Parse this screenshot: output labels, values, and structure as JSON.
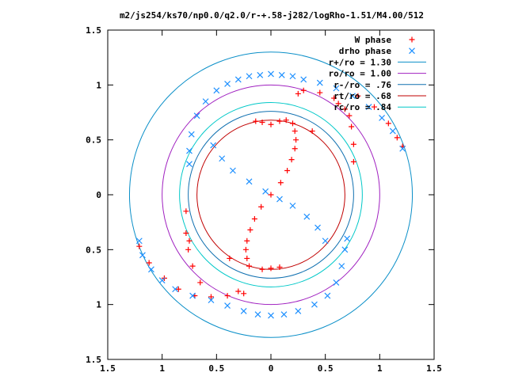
{
  "chart_data": {
    "type": "scatter",
    "title": "m2/js254/ks70/np0.0/q2.0/r-+.58-j282/logRho-1.51/M4.00/512",
    "xlabel": "",
    "ylabel": "",
    "xlim": [
      -1.5,
      1.5
    ],
    "ylim": [
      -1.5,
      1.5
    ],
    "grid": false,
    "legend_placement": "top-right",
    "x_ticks": [
      {
        "value": -1.5,
        "label": "1.5"
      },
      {
        "value": -1.0,
        "label": "1"
      },
      {
        "value": -0.5,
        "label": "0.5"
      },
      {
        "value": 0.0,
        "label": "0"
      },
      {
        "value": 0.5,
        "label": "0.5"
      },
      {
        "value": 1.0,
        "label": "1"
      },
      {
        "value": 1.5,
        "label": "1.5"
      }
    ],
    "y_ticks": [
      {
        "value": -1.5,
        "label": "1.5"
      },
      {
        "value": -1.0,
        "label": "1"
      },
      {
        "value": -0.5,
        "label": "0.5"
      },
      {
        "value": 0.0,
        "label": "0"
      },
      {
        "value": 0.5,
        "label": "0.5"
      },
      {
        "value": 1.0,
        "label": "1"
      },
      {
        "value": 1.5,
        "label": "1.5"
      }
    ],
    "circles": [
      {
        "name": "r+/ro = 1.30",
        "radius": 1.3,
        "color": "#0a8fc8"
      },
      {
        "name": "ro/ro = 1.00",
        "radius": 1.0,
        "color": "#a020c0"
      },
      {
        "name": "r-/ro = .76",
        "radius": 0.76,
        "color": "#1070b0"
      },
      {
        "name": "rt/ro = .68",
        "radius": 0.68,
        "color": "#c00000"
      },
      {
        "name": "rc/ro = .84",
        "radius": 0.84,
        "color": "#00c8c8"
      }
    ],
    "series": [
      {
        "name": "W phase",
        "marker": "plus",
        "color": "#ff0000",
        "points": [
          [
            0.2,
            0.65
          ],
          [
            0.22,
            0.58
          ],
          [
            0.23,
            0.5
          ],
          [
            0.22,
            0.42
          ],
          [
            0.19,
            0.32
          ],
          [
            0.15,
            0.22
          ],
          [
            0.09,
            0.11
          ],
          [
            0.0,
            0.0
          ],
          [
            -0.09,
            -0.11
          ],
          [
            -0.15,
            -0.22
          ],
          [
            -0.19,
            -0.32
          ],
          [
            -0.22,
            -0.42
          ],
          [
            -0.23,
            -0.5
          ],
          [
            -0.22,
            -0.58
          ],
          [
            -0.2,
            -0.65
          ],
          [
            0.14,
            0.68
          ],
          [
            0.08,
            0.67
          ],
          [
            0.0,
            0.64
          ],
          [
            -0.08,
            0.66
          ],
          [
            -0.14,
            0.67
          ],
          [
            -0.08,
            -0.68
          ],
          [
            0.0,
            -0.67
          ],
          [
            0.08,
            -0.66
          ],
          [
            0.38,
            0.58
          ],
          [
            -0.38,
            -0.58
          ],
          [
            0.3,
            0.95
          ],
          [
            0.45,
            0.93
          ],
          [
            0.58,
            0.88
          ],
          [
            0.68,
            0.78
          ],
          [
            0.74,
            0.62
          ],
          [
            0.76,
            0.46
          ],
          [
            0.76,
            0.3
          ],
          [
            0.8,
            0.9
          ],
          [
            0.95,
            0.8
          ],
          [
            1.08,
            0.65
          ],
          [
            1.16,
            0.52
          ],
          [
            1.21,
            0.44
          ],
          [
            -1.21,
            -0.47
          ],
          [
            -1.12,
            -0.62
          ],
          [
            -0.98,
            -0.76
          ],
          [
            -0.85,
            -0.86
          ],
          [
            -0.7,
            -0.92
          ],
          [
            -0.55,
            -0.93
          ],
          [
            -0.4,
            -0.92
          ],
          [
            -0.3,
            -0.88
          ],
          [
            -0.65,
            -0.8
          ],
          [
            -0.72,
            -0.65
          ],
          [
            -0.76,
            -0.5
          ],
          [
            -0.78,
            -0.35
          ],
          [
            -0.78,
            -0.15
          ],
          [
            0.25,
            0.92
          ],
          [
            0.62,
            0.83
          ],
          [
            0.72,
            0.72
          ],
          [
            -0.25,
            -0.9
          ],
          [
            -0.75,
            -0.42
          ]
        ]
      },
      {
        "name": "drho phase",
        "marker": "cross",
        "color": "#1e90ff",
        "points": [
          [
            -0.53,
            0.45
          ],
          [
            -0.45,
            0.33
          ],
          [
            -0.35,
            0.22
          ],
          [
            -0.2,
            0.12
          ],
          [
            -0.05,
            0.03
          ],
          [
            0.08,
            -0.04
          ],
          [
            0.2,
            -0.1
          ],
          [
            0.33,
            -0.2
          ],
          [
            0.43,
            -0.3
          ],
          [
            0.5,
            -0.42
          ],
          [
            -0.75,
            0.28
          ],
          [
            -0.75,
            0.4
          ],
          [
            -0.73,
            0.55
          ],
          [
            -0.68,
            0.72
          ],
          [
            -0.6,
            0.85
          ],
          [
            -0.5,
            0.95
          ],
          [
            -0.4,
            1.01
          ],
          [
            -0.3,
            1.05
          ],
          [
            -0.2,
            1.08
          ],
          [
            -0.1,
            1.09
          ],
          [
            0.0,
            1.1
          ],
          [
            0.1,
            1.09
          ],
          [
            0.2,
            1.08
          ],
          [
            0.3,
            1.05
          ],
          [
            0.45,
            1.02
          ],
          [
            0.6,
            0.97
          ],
          [
            0.75,
            0.9
          ],
          [
            0.9,
            0.8
          ],
          [
            1.02,
            0.7
          ],
          [
            1.12,
            0.58
          ],
          [
            1.21,
            0.42
          ],
          [
            -1.21,
            -0.42
          ],
          [
            -1.18,
            -0.55
          ],
          [
            -1.1,
            -0.68
          ],
          [
            -1.0,
            -0.78
          ],
          [
            -0.88,
            -0.86
          ],
          [
            -0.72,
            -0.92
          ],
          [
            -0.55,
            -0.96
          ],
          [
            -0.4,
            -1.01
          ],
          [
            -0.25,
            -1.06
          ],
          [
            -0.12,
            -1.09
          ],
          [
            0.0,
            -1.1
          ],
          [
            0.12,
            -1.09
          ],
          [
            0.25,
            -1.06
          ],
          [
            0.4,
            -1.0
          ],
          [
            0.52,
            -0.92
          ],
          [
            0.6,
            -0.8
          ],
          [
            0.65,
            -0.65
          ],
          [
            0.68,
            -0.5
          ],
          [
            0.7,
            -0.4
          ]
        ]
      }
    ]
  }
}
